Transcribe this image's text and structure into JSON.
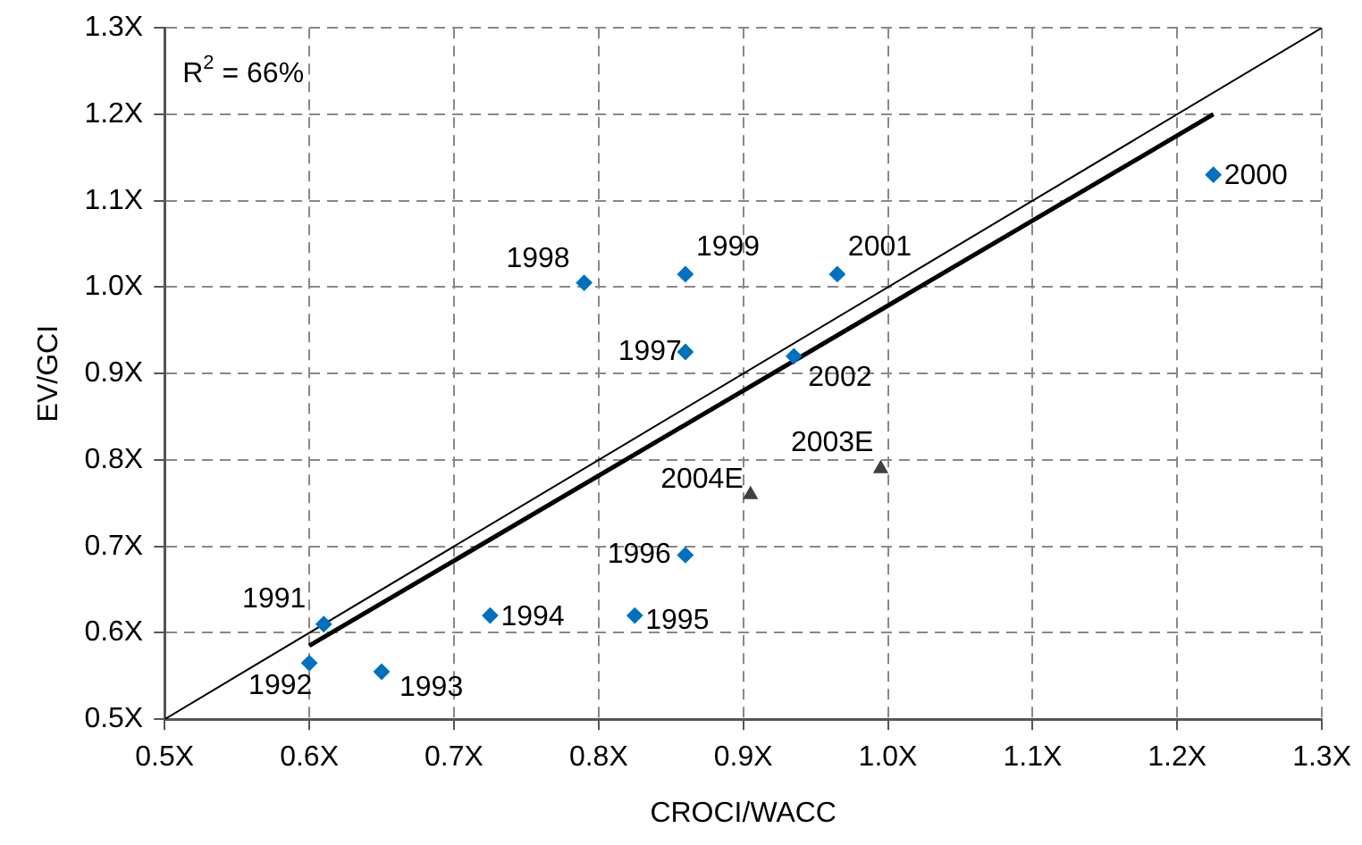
{
  "chart_data": {
    "type": "scatter",
    "xlabel": "CROCI/WACC",
    "ylabel": "EV/GCI",
    "xlim": [
      0.5,
      1.3
    ],
    "ylim": [
      0.5,
      1.3
    ],
    "xticks": [
      {
        "value": 0.5,
        "label": "0.5X"
      },
      {
        "value": 0.6,
        "label": "0.6X"
      },
      {
        "value": 0.7,
        "label": "0.7X"
      },
      {
        "value": 0.8,
        "label": "0.8X"
      },
      {
        "value": 0.9,
        "label": "0.9X"
      },
      {
        "value": 1.0,
        "label": "1.0X"
      },
      {
        "value": 1.1,
        "label": "1.1X"
      },
      {
        "value": 1.2,
        "label": "1.2X"
      },
      {
        "value": 1.3,
        "label": "1.3X"
      }
    ],
    "yticks": [
      {
        "value": 0.5,
        "label": "0.5X"
      },
      {
        "value": 0.6,
        "label": "0.6X"
      },
      {
        "value": 0.7,
        "label": "0.7X"
      },
      {
        "value": 0.8,
        "label": "0.8X"
      },
      {
        "value": 0.9,
        "label": "0.9X"
      },
      {
        "value": 1.0,
        "label": "1.0X"
      },
      {
        "value": 1.1,
        "label": "1.1X"
      },
      {
        "value": 1.2,
        "label": "1.2X"
      },
      {
        "value": 1.3,
        "label": "1.3X"
      }
    ],
    "grid": true,
    "legend": false,
    "series": [
      {
        "type": "scatter",
        "marker": "diamond",
        "color": "#0070c0",
        "x": [
          0.61,
          0.6,
          0.65,
          0.725,
          0.825,
          0.86,
          0.86,
          0.79,
          0.86,
          0.965,
          0.935,
          1.225
        ],
        "values": [
          0.61,
          0.565,
          0.555,
          0.62,
          0.62,
          0.69,
          0.925,
          1.005,
          1.015,
          1.015,
          0.92,
          1.13
        ]
      },
      {
        "type": "scatter",
        "marker": "triangle",
        "color": "#404040",
        "x": [
          0.995,
          0.905
        ],
        "values": [
          0.79,
          0.76
        ]
      },
      {
        "type": "line",
        "marker": "none",
        "color": "#000000",
        "x": [
          0.6,
          1.225
        ],
        "values": [
          0.585,
          1.2
        ]
      },
      {
        "type": "line",
        "marker": "none",
        "color": "#000000",
        "x": [
          0.5,
          1.3
        ],
        "values": [
          0.5,
          1.3
        ]
      }
    ],
    "annotations": [
      {
        "text": "1991",
        "x": 0.61,
        "y": 0.61
      },
      {
        "text": "1992",
        "x": 0.6,
        "y": 0.565
      },
      {
        "text": "1993",
        "x": 0.65,
        "y": 0.555
      },
      {
        "text": "1994",
        "x": 0.725,
        "y": 0.62
      },
      {
        "text": "1995",
        "x": 0.825,
        "y": 0.62
      },
      {
        "text": "1996",
        "x": 0.86,
        "y": 0.69
      },
      {
        "text": "1997",
        "x": 0.86,
        "y": 0.925
      },
      {
        "text": "1998",
        "x": 0.79,
        "y": 1.005
      },
      {
        "text": "1999",
        "x": 0.86,
        "y": 1.015
      },
      {
        "text": "2001",
        "x": 0.965,
        "y": 1.015
      },
      {
        "text": "2002",
        "x": 0.935,
        "y": 0.92
      },
      {
        "text": "2000",
        "x": 1.225,
        "y": 1.13
      },
      {
        "text": "2003E",
        "x": 0.995,
        "y": 0.79
      },
      {
        "text": "2004E",
        "x": 0.905,
        "y": 0.76
      },
      "R$^{2}$ = 66%"
    ]
  }
}
